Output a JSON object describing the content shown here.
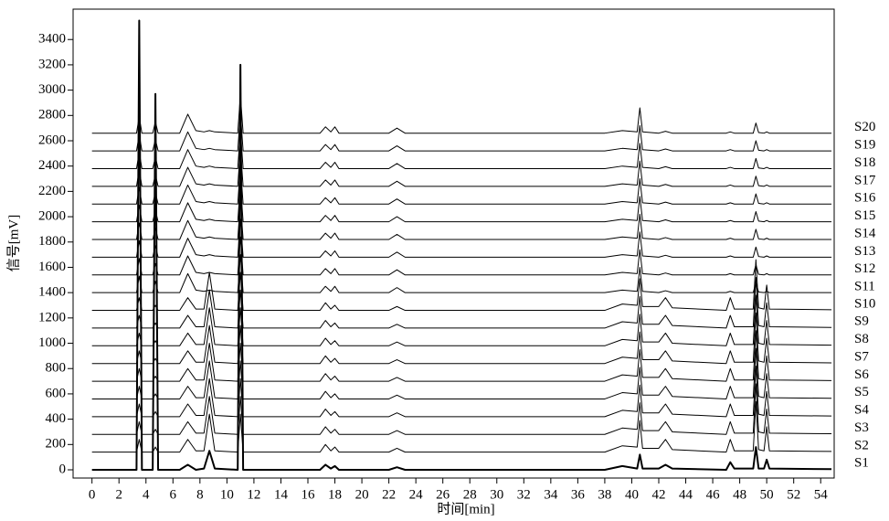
{
  "chart_data": {
    "type": "line",
    "xlabel": "时间[min]",
    "ylabel": "信号[mV]",
    "xlim": [
      -1.4,
      55
    ],
    "ylim": [
      -65,
      3640
    ],
    "xticks": [
      0,
      2,
      4,
      6,
      8,
      10,
      12,
      14,
      16,
      18,
      20,
      22,
      24,
      26,
      28,
      30,
      32,
      34,
      36,
      38,
      40,
      42,
      44,
      46,
      48,
      50,
      52,
      54
    ],
    "yticks": [
      0,
      200,
      400,
      600,
      800,
      1000,
      1200,
      1400,
      1600,
      1800,
      2000,
      2200,
      2400,
      2600,
      2800,
      3000,
      3200,
      3400
    ],
    "x": [
      0,
      3.3,
      3.5,
      3.7,
      4.5,
      4.7,
      4.9,
      6.5,
      7.1,
      7.7,
      8.3,
      8.7,
      9.1,
      10.8,
      11.0,
      11.2,
      16.9,
      17.3,
      17.7,
      18.0,
      18.3,
      22.0,
      22.6,
      23.2,
      38.0,
      39.3,
      40.4,
      40.6,
      40.8,
      42.0,
      42.5,
      43.0,
      47.0,
      47.3,
      47.6,
      49.0,
      49.2,
      49.4,
      49.8,
      50.0,
      50.2,
      54.8
    ],
    "series": [
      {
        "name": "S1",
        "color": "#000000",
        "line_width": 2,
        "values": [
          0,
          0,
          3550,
          0,
          0,
          2970,
          0,
          0,
          40,
          0,
          10,
          150,
          10,
          0,
          3200,
          0,
          0,
          40,
          10,
          30,
          0,
          0,
          20,
          0,
          0,
          30,
          10,
          120,
          10,
          10,
          40,
          10,
          0,
          60,
          10,
          10,
          180,
          10,
          10,
          80,
          10,
          5
        ]
      },
      {
        "name": "S2",
        "color": "#000000",
        "line_width": 1,
        "values": [
          140,
          140,
          240,
          140,
          140,
          180,
          140,
          140,
          240,
          150,
          150,
          440,
          150,
          140,
          440,
          140,
          140,
          200,
          150,
          180,
          140,
          140,
          170,
          140,
          140,
          190,
          180,
          390,
          170,
          170,
          240,
          160,
          140,
          240,
          150,
          150,
          540,
          160,
          150,
          340,
          150,
          145
        ]
      },
      {
        "name": "S3",
        "color": "#000000",
        "line_width": 1,
        "values": [
          280,
          280,
          380,
          280,
          280,
          320,
          280,
          280,
          380,
          290,
          290,
          580,
          290,
          280,
          580,
          280,
          280,
          340,
          290,
          320,
          280,
          280,
          310,
          280,
          280,
          330,
          320,
          530,
          310,
          310,
          380,
          300,
          280,
          380,
          290,
          290,
          680,
          300,
          290,
          480,
          290,
          285
        ]
      },
      {
        "name": "S4",
        "color": "#000000",
        "line_width": 1,
        "values": [
          420,
          420,
          520,
          420,
          420,
          460,
          420,
          420,
          520,
          430,
          430,
          720,
          430,
          420,
          720,
          420,
          420,
          480,
          430,
          460,
          420,
          420,
          450,
          420,
          420,
          470,
          460,
          670,
          450,
          450,
          520,
          440,
          420,
          520,
          430,
          430,
          820,
          440,
          430,
          620,
          430,
          425
        ]
      },
      {
        "name": "S5",
        "color": "#000000",
        "line_width": 1,
        "values": [
          560,
          560,
          660,
          560,
          560,
          600,
          560,
          560,
          660,
          570,
          570,
          860,
          570,
          560,
          860,
          560,
          560,
          620,
          570,
          600,
          560,
          560,
          590,
          560,
          560,
          610,
          600,
          810,
          590,
          590,
          660,
          580,
          560,
          660,
          570,
          570,
          960,
          580,
          570,
          760,
          570,
          565
        ]
      },
      {
        "name": "S6",
        "color": "#000000",
        "line_width": 1,
        "values": [
          700,
          700,
          800,
          700,
          700,
          740,
          700,
          700,
          800,
          710,
          710,
          1000,
          710,
          700,
          1000,
          700,
          700,
          760,
          710,
          740,
          700,
          700,
          730,
          700,
          700,
          750,
          740,
          950,
          730,
          730,
          800,
          720,
          700,
          800,
          710,
          710,
          1100,
          720,
          710,
          900,
          710,
          705
        ]
      },
      {
        "name": "S7",
        "color": "#000000",
        "line_width": 1,
        "values": [
          840,
          840,
          940,
          840,
          840,
          880,
          840,
          840,
          940,
          850,
          850,
          1140,
          850,
          840,
          1140,
          840,
          840,
          900,
          850,
          880,
          840,
          840,
          870,
          840,
          840,
          890,
          880,
          1090,
          870,
          870,
          940,
          860,
          840,
          940,
          850,
          850,
          1240,
          860,
          850,
          1040,
          850,
          845
        ]
      },
      {
        "name": "S8",
        "color": "#000000",
        "line_width": 1,
        "values": [
          980,
          980,
          1080,
          980,
          980,
          1020,
          980,
          980,
          1080,
          990,
          990,
          1280,
          990,
          980,
          1280,
          980,
          980,
          1040,
          990,
          1020,
          980,
          980,
          1010,
          980,
          980,
          1030,
          1020,
          1230,
          1010,
          1010,
          1080,
          1000,
          980,
          1080,
          990,
          990,
          1380,
          1000,
          990,
          1180,
          990,
          985
        ]
      },
      {
        "name": "S9",
        "color": "#000000",
        "line_width": 1,
        "values": [
          1120,
          1120,
          1220,
          1120,
          1120,
          1160,
          1120,
          1120,
          1220,
          1130,
          1130,
          1420,
          1130,
          1120,
          1420,
          1120,
          1120,
          1180,
          1130,
          1160,
          1120,
          1120,
          1150,
          1120,
          1120,
          1170,
          1160,
          1370,
          1150,
          1150,
          1220,
          1140,
          1120,
          1220,
          1130,
          1130,
          1520,
          1140,
          1130,
          1320,
          1130,
          1125
        ]
      },
      {
        "name": "S10",
        "color": "#000000",
        "line_width": 1,
        "values": [
          1260,
          1260,
          1360,
          1260,
          1260,
          1300,
          1260,
          1260,
          1360,
          1270,
          1270,
          1560,
          1270,
          1260,
          1560,
          1260,
          1260,
          1320,
          1270,
          1300,
          1260,
          1260,
          1290,
          1260,
          1260,
          1310,
          1300,
          1510,
          1290,
          1290,
          1360,
          1280,
          1260,
          1360,
          1270,
          1270,
          1660,
          1280,
          1270,
          1460,
          1270,
          1265
        ]
      },
      {
        "name": "S11",
        "color": "#000000",
        "line_width": 1,
        "values": [
          1400,
          1400,
          1530,
          1400,
          1400,
          1490,
          1400,
          1400,
          1550,
          1420,
          1410,
          1420,
          1410,
          1400,
          1700,
          1400,
          1400,
          1450,
          1410,
          1450,
          1400,
          1400,
          1440,
          1400,
          1400,
          1420,
          1410,
          1600,
          1410,
          1400,
          1415,
          1400,
          1400,
          1410,
          1400,
          1400,
          1480,
          1405,
          1400,
          1410,
          1400,
          1400
        ]
      },
      {
        "name": "S12",
        "color": "#000000",
        "line_width": 1,
        "values": [
          1540,
          1540,
          1670,
          1540,
          1540,
          1630,
          1540,
          1540,
          1690,
          1560,
          1550,
          1560,
          1550,
          1540,
          1840,
          1540,
          1540,
          1590,
          1550,
          1590,
          1540,
          1540,
          1580,
          1540,
          1540,
          1560,
          1550,
          1740,
          1550,
          1540,
          1555,
          1540,
          1540,
          1550,
          1540,
          1540,
          1620,
          1545,
          1540,
          1550,
          1540,
          1540
        ]
      },
      {
        "name": "S13",
        "color": "#000000",
        "line_width": 1,
        "values": [
          1680,
          1680,
          1810,
          1680,
          1680,
          1770,
          1680,
          1680,
          1830,
          1700,
          1690,
          1700,
          1690,
          1680,
          1980,
          1680,
          1680,
          1730,
          1690,
          1730,
          1680,
          1680,
          1720,
          1680,
          1680,
          1700,
          1690,
          1880,
          1690,
          1680,
          1695,
          1680,
          1680,
          1690,
          1680,
          1680,
          1760,
          1685,
          1680,
          1690,
          1680,
          1680
        ]
      },
      {
        "name": "S14",
        "color": "#000000",
        "line_width": 1,
        "values": [
          1820,
          1820,
          1950,
          1820,
          1820,
          1910,
          1820,
          1820,
          1970,
          1840,
          1830,
          1840,
          1830,
          1820,
          2120,
          1820,
          1820,
          1870,
          1830,
          1870,
          1820,
          1820,
          1860,
          1820,
          1820,
          1840,
          1830,
          2020,
          1830,
          1820,
          1835,
          1820,
          1820,
          1830,
          1820,
          1820,
          1900,
          1825,
          1820,
          1830,
          1820,
          1820
        ]
      },
      {
        "name": "S15",
        "color": "#000000",
        "line_width": 1,
        "values": [
          1960,
          1960,
          2090,
          1960,
          1960,
          2050,
          1960,
          1960,
          2110,
          1980,
          1970,
          1980,
          1970,
          1960,
          2260,
          1960,
          1960,
          2010,
          1970,
          2010,
          1960,
          1960,
          2000,
          1960,
          1960,
          1980,
          1970,
          2160,
          1970,
          1960,
          1975,
          1960,
          1960,
          1970,
          1960,
          1960,
          2040,
          1965,
          1960,
          1970,
          1960,
          1960
        ]
      },
      {
        "name": "S16",
        "color": "#000000",
        "line_width": 1,
        "values": [
          2100,
          2100,
          2230,
          2100,
          2100,
          2190,
          2100,
          2100,
          2250,
          2120,
          2110,
          2120,
          2110,
          2100,
          2400,
          2100,
          2100,
          2150,
          2110,
          2150,
          2100,
          2100,
          2140,
          2100,
          2100,
          2120,
          2110,
          2300,
          2110,
          2100,
          2115,
          2100,
          2100,
          2110,
          2100,
          2100,
          2180,
          2105,
          2100,
          2110,
          2100,
          2100
        ]
      },
      {
        "name": "S17",
        "color": "#000000",
        "line_width": 1,
        "values": [
          2240,
          2240,
          2370,
          2240,
          2240,
          2330,
          2240,
          2240,
          2390,
          2260,
          2250,
          2260,
          2250,
          2240,
          2540,
          2240,
          2240,
          2290,
          2250,
          2290,
          2240,
          2240,
          2280,
          2240,
          2240,
          2260,
          2250,
          2440,
          2250,
          2240,
          2255,
          2240,
          2240,
          2250,
          2240,
          2240,
          2320,
          2245,
          2240,
          2250,
          2240,
          2240
        ]
      },
      {
        "name": "S18",
        "color": "#000000",
        "line_width": 1,
        "values": [
          2380,
          2380,
          2510,
          2380,
          2380,
          2470,
          2380,
          2380,
          2530,
          2400,
          2390,
          2400,
          2390,
          2380,
          2680,
          2380,
          2380,
          2430,
          2390,
          2430,
          2380,
          2380,
          2420,
          2380,
          2380,
          2400,
          2390,
          2580,
          2390,
          2380,
          2395,
          2380,
          2380,
          2390,
          2380,
          2380,
          2460,
          2385,
          2380,
          2390,
          2380,
          2380
        ]
      },
      {
        "name": "S19",
        "color": "#000000",
        "line_width": 1,
        "values": [
          2520,
          2520,
          2650,
          2520,
          2520,
          2610,
          2520,
          2520,
          2670,
          2540,
          2530,
          2540,
          2530,
          2520,
          2820,
          2520,
          2520,
          2570,
          2530,
          2570,
          2520,
          2520,
          2560,
          2520,
          2520,
          2540,
          2530,
          2720,
          2530,
          2520,
          2535,
          2520,
          2520,
          2530,
          2520,
          2520,
          2600,
          2525,
          2520,
          2530,
          2520,
          2520
        ]
      },
      {
        "name": "S20",
        "color": "#000000",
        "line_width": 1,
        "values": [
          2660,
          2660,
          2790,
          2660,
          2660,
          2750,
          2660,
          2660,
          2810,
          2680,
          2670,
          2680,
          2670,
          2660,
          2960,
          2660,
          2660,
          2710,
          2670,
          2710,
          2660,
          2660,
          2700,
          2660,
          2660,
          2680,
          2670,
          2860,
          2670,
          2660,
          2675,
          2660,
          2660,
          2670,
          2660,
          2660,
          2740,
          2665,
          2660,
          2670,
          2660,
          2660
        ]
      }
    ]
  }
}
